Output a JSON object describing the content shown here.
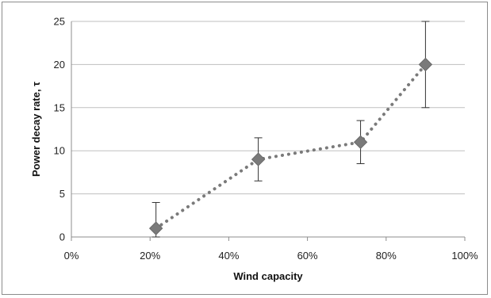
{
  "chart_data": {
    "type": "scatter",
    "title": "",
    "xlabel": "Wind capacity",
    "ylabel": "Power decay rate, τ",
    "x_ticks": [
      "0%",
      "20%",
      "40%",
      "60%",
      "80%",
      "100%"
    ],
    "y_ticks": [
      "0",
      "5",
      "10",
      "15",
      "20",
      "25"
    ],
    "xlim": [
      0,
      100
    ],
    "ylim": [
      0,
      25
    ],
    "grid": "horizontal",
    "legend": "none",
    "colors": {
      "marker": "#7a7a7a",
      "trend": "#7a7a7a",
      "grid": "#bfbfbf",
      "error_bar": "#333333"
    },
    "series": [
      {
        "points": [
          {
            "x": 21.5,
            "y": 1,
            "y_low": 0,
            "y_high": 4
          },
          {
            "x": 47.5,
            "y": 9,
            "y_low": 6.5,
            "y_high": 11.5
          },
          {
            "x": 73.5,
            "y": 11,
            "y_low": 8.5,
            "y_high": 13.5
          },
          {
            "x": 90,
            "y": 20,
            "y_low": 15,
            "y_high": 25
          }
        ],
        "trendline": "dotted"
      }
    ]
  }
}
